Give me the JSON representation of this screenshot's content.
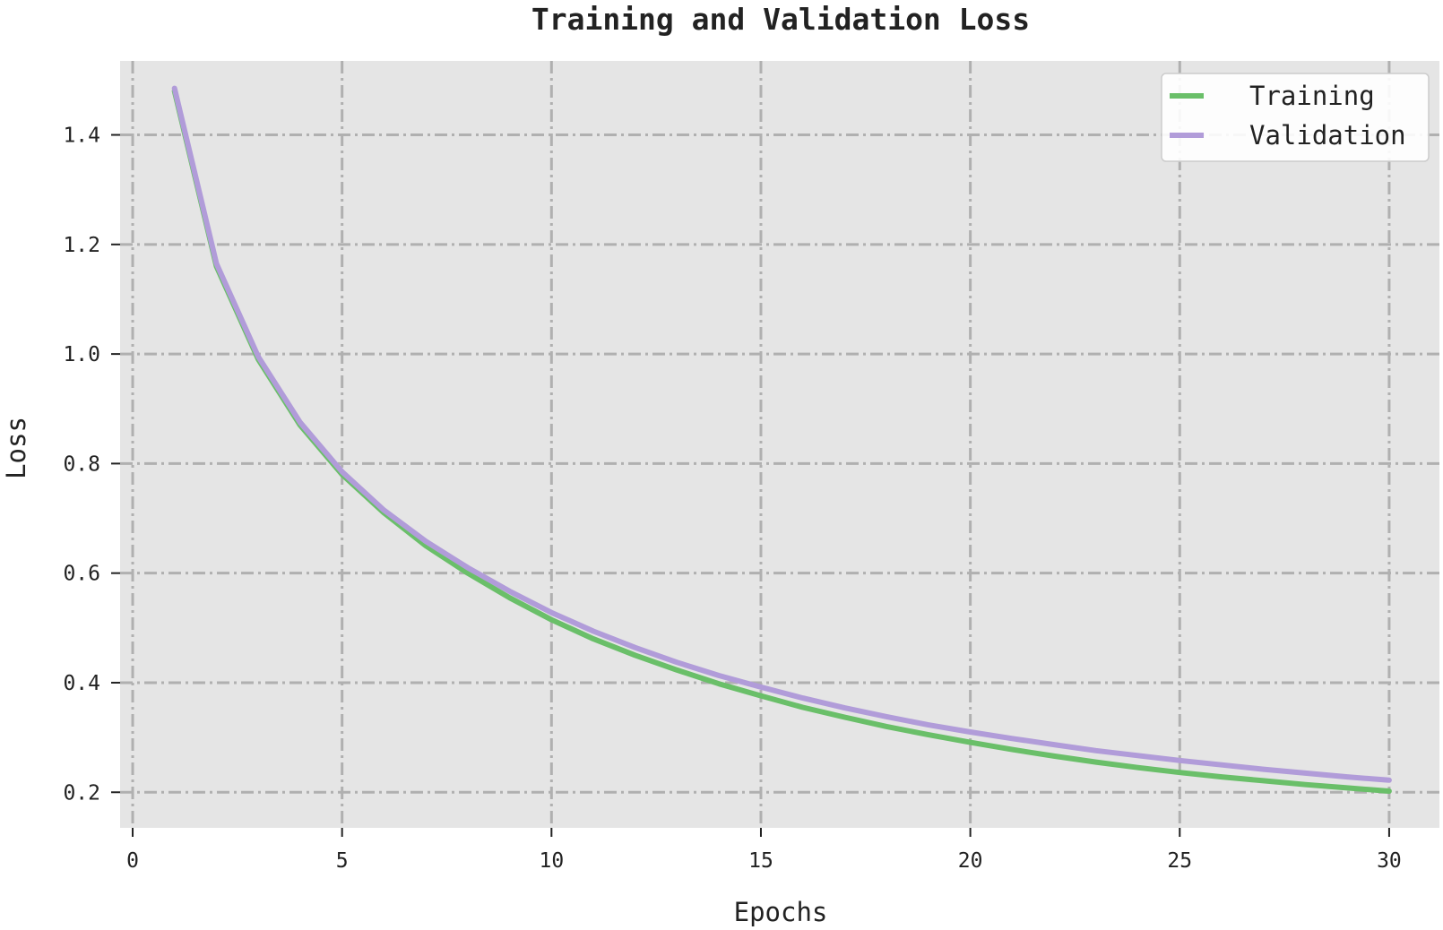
{
  "chart_data": {
    "type": "line",
    "title": "Training and Validation Loss",
    "xlabel": "Epochs",
    "ylabel": "Loss",
    "xlim": [
      -0.3,
      31.2
    ],
    "ylim": [
      0.135,
      1.535
    ],
    "xticks": [
      0,
      5,
      10,
      15,
      20,
      25,
      30
    ],
    "xtick_labels": [
      "0",
      "5",
      "10",
      "15",
      "20",
      "25",
      "30"
    ],
    "yticks": [
      0.2,
      0.4,
      0.6,
      0.8,
      1.0,
      1.2,
      1.4
    ],
    "ytick_labels": [
      "0.2",
      "0.4",
      "0.6",
      "0.8",
      "1.0",
      "1.2",
      "1.4"
    ],
    "grid": true,
    "grid_style": "dash-dot",
    "legend_position": "top-right",
    "x": [
      1,
      2,
      3,
      4,
      5,
      6,
      7,
      8,
      9,
      10,
      11,
      12,
      13,
      14,
      15,
      16,
      17,
      18,
      19,
      20,
      21,
      22,
      23,
      24,
      25,
      26,
      27,
      28,
      29,
      30
    ],
    "series": [
      {
        "name": "Training",
        "color": "#6abf69",
        "values": [
          1.48,
          1.16,
          0.99,
          0.87,
          0.78,
          0.71,
          0.65,
          0.6,
          0.555,
          0.515,
          0.48,
          0.45,
          0.423,
          0.398,
          0.376,
          0.355,
          0.337,
          0.32,
          0.305,
          0.291,
          0.278,
          0.266,
          0.255,
          0.245,
          0.236,
          0.228,
          0.221,
          0.214,
          0.208,
          0.202
        ]
      },
      {
        "name": "Validation",
        "color": "#b19cd9",
        "values": [
          1.485,
          1.165,
          0.995,
          0.875,
          0.785,
          0.715,
          0.658,
          0.61,
          0.567,
          0.528,
          0.494,
          0.464,
          0.437,
          0.413,
          0.392,
          0.372,
          0.354,
          0.338,
          0.323,
          0.31,
          0.298,
          0.287,
          0.276,
          0.267,
          0.258,
          0.25,
          0.242,
          0.235,
          0.228,
          0.222
        ]
      }
    ],
    "colors": {
      "plot_background": "#e5e5e5",
      "grid": "#b0b0b0",
      "axis": "#222222"
    }
  }
}
